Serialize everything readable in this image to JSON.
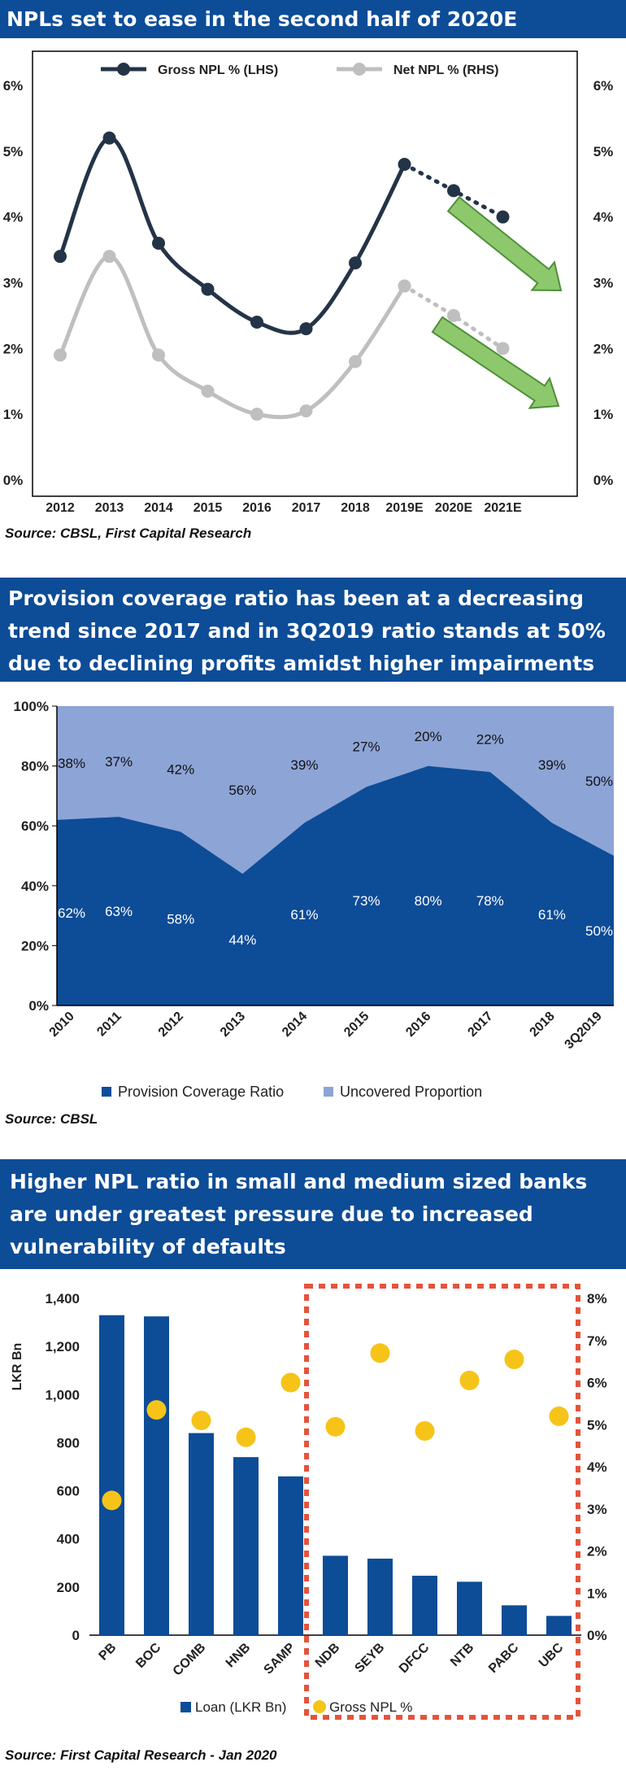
{
  "chart_data": [
    {
      "type": "line",
      "title": "NPLs set to ease in the second half of 2020E",
      "categories": [
        "2012",
        "2013",
        "2014",
        "2015",
        "2016",
        "2017",
        "2018",
        "2019E",
        "2020E",
        "2021E"
      ],
      "series": [
        {
          "name": "Gross NPL % (LHS)",
          "values": [
            3.4,
            5.2,
            3.6,
            2.9,
            2.4,
            2.3,
            3.3,
            4.8,
            4.4,
            4.0
          ],
          "color": "#243447"
        },
        {
          "name": "Net NPL % (RHS)",
          "values": [
            1.9,
            3.4,
            1.9,
            1.35,
            1.0,
            1.05,
            1.8,
            2.95,
            2.5,
            2.0
          ],
          "color": "#bfbfbf"
        }
      ],
      "y_ticks": [
        "0%",
        "1%",
        "2%",
        "3%",
        "4%",
        "5%",
        "6%"
      ],
      "ylim": [
        0,
        6
      ],
      "legend": "top",
      "source": "Source: CBSL, First Capital Research"
    },
    {
      "type": "area",
      "title": "Provision coverage ratio has been at a decreasing trend since 2017 and in 3Q2019 ratio stands at 50% due to declining profits amidst higher impairments",
      "categories": [
        "2010",
        "2011",
        "2012",
        "2013",
        "2014",
        "2015",
        "2016",
        "2017",
        "2018",
        "3Q2019"
      ],
      "series": [
        {
          "name": "Provision Coverage Ratio",
          "values": [
            62,
            63,
            58,
            44,
            61,
            73,
            80,
            78,
            61,
            50
          ],
          "labels": [
            "62%",
            "63%",
            "58%",
            "44%",
            "61%",
            "73%",
            "80%",
            "78%",
            "61%",
            "50%"
          ],
          "color": "#0d4c97"
        },
        {
          "name": "Uncovered Proportion",
          "values": [
            38,
            37,
            42,
            56,
            39,
            27,
            20,
            22,
            39,
            50
          ],
          "labels": [
            "38%",
            "37%",
            "42%",
            "56%",
            "39%",
            "27%",
            "20%",
            "22%",
            "39%",
            "50%"
          ],
          "color": "#8da4d6"
        }
      ],
      "y_ticks": [
        "0%",
        "20%",
        "40%",
        "60%",
        "80%",
        "100%"
      ],
      "ylim": [
        0,
        100
      ],
      "legend": "bottom",
      "source": "Source: CBSL"
    },
    {
      "type": "bar",
      "title": "Higher NPL ratio in small and medium sized banks are under greatest pressure due to increased vulnerability of defaults",
      "categories": [
        "PB",
        "BOC",
        "COMB",
        "HNB",
        "SAMP",
        "NDB",
        "SEYB",
        "DFCC",
        "NTB",
        "PABC",
        "UBC"
      ],
      "series": [
        {
          "name": "Loan (LKR Bn)",
          "values": [
            1330,
            1325,
            840,
            740,
            660,
            330,
            318,
            247,
            222,
            124,
            80
          ],
          "color": "#0d4c97"
        },
        {
          "name": "Gross NPL %",
          "values": [
            3.2,
            5.35,
            5.1,
            4.7,
            6.0,
            4.95,
            6.7,
            4.85,
            6.05,
            6.55,
            5.2
          ],
          "color": "#f6c319"
        }
      ],
      "ylabel": "LKR Bn",
      "y_ticks": [
        "0",
        "200",
        "400",
        "600",
        "800",
        "1,000",
        "1,200",
        "1,400"
      ],
      "ylim": [
        0,
        1400
      ],
      "y2_ticks": [
        "0%",
        "1%",
        "2%",
        "3%",
        "4%",
        "5%",
        "6%",
        "7%",
        "8%"
      ],
      "y2lim": [
        0,
        8
      ],
      "legend": "bottom",
      "source": "Source: First Capital Research - Jan 2020"
    }
  ]
}
